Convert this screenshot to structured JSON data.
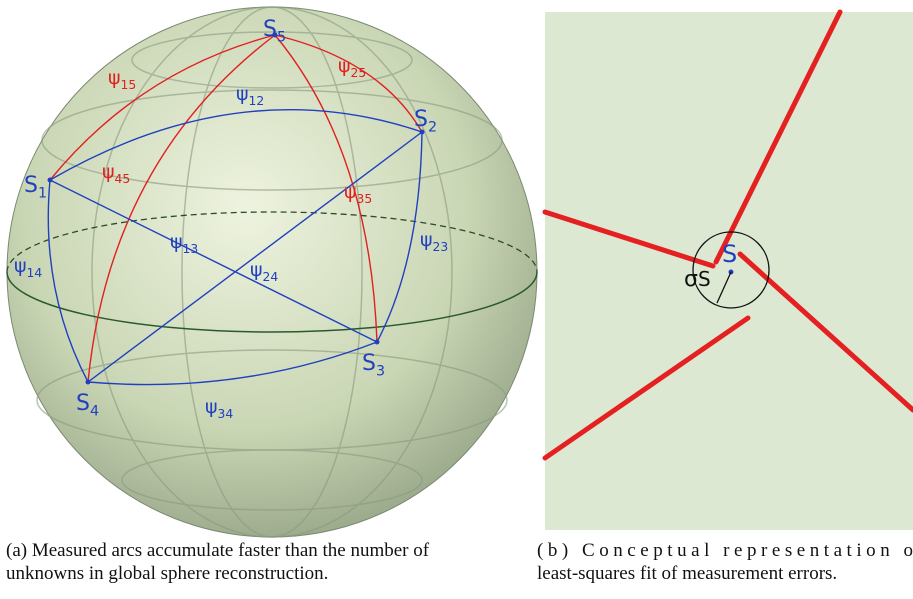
{
  "panel_a": {
    "nodes": [
      {
        "base": "S",
        "sub": "5"
      },
      {
        "base": "S",
        "sub": "2"
      },
      {
        "base": "S",
        "sub": "1"
      },
      {
        "base": "S",
        "sub": "3"
      },
      {
        "base": "S",
        "sub": "4"
      }
    ],
    "arcs": [
      {
        "base": "ψ",
        "sub": "15"
      },
      {
        "base": "ψ",
        "sub": "25"
      },
      {
        "base": "ψ",
        "sub": "45"
      },
      {
        "base": "ψ",
        "sub": "35"
      },
      {
        "base": "ψ",
        "sub": "12"
      },
      {
        "base": "ψ",
        "sub": "13"
      },
      {
        "base": "ψ",
        "sub": "24"
      },
      {
        "base": "ψ",
        "sub": "23"
      },
      {
        "base": "ψ",
        "sub": "14"
      },
      {
        "base": "ψ",
        "sub": "34"
      }
    ],
    "caption": [
      "(a) Measured arcs accumulate faster than the number of",
      "unknowns in global sphere reconstruction."
    ]
  },
  "panel_b": {
    "point": "S",
    "sigma": {
      "base": "σ",
      "sub": "S"
    },
    "caption": [
      "(b) Conceptual representation o",
      "least-squares fit of measurement errors."
    ]
  }
}
